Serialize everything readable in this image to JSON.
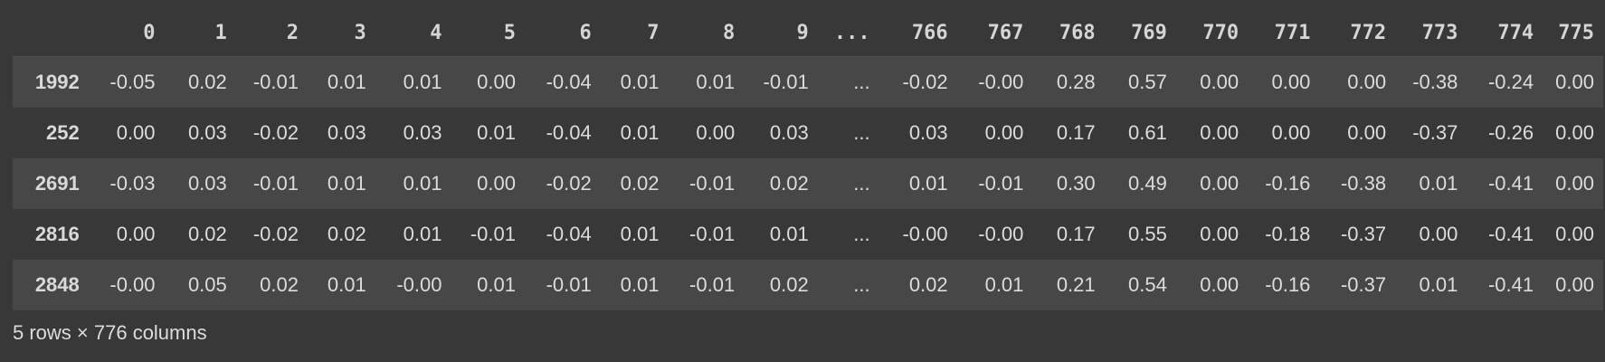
{
  "dataframe": {
    "columns": [
      "0",
      "1",
      "2",
      "3",
      "4",
      "5",
      "6",
      "7",
      "8",
      "9",
      "...",
      "766",
      "767",
      "768",
      "769",
      "770",
      "771",
      "772",
      "773",
      "774",
      "775"
    ],
    "rows": [
      {
        "index": "1992",
        "values": [
          "-0.05",
          "0.02",
          "-0.01",
          "0.01",
          "0.01",
          "0.00",
          "-0.04",
          "0.01",
          "0.01",
          "-0.01",
          "...",
          "-0.02",
          "-0.00",
          "0.28",
          "0.57",
          "0.00",
          "0.00",
          "0.00",
          "-0.38",
          "-0.24",
          "0.00"
        ]
      },
      {
        "index": "252",
        "values": [
          "0.00",
          "0.03",
          "-0.02",
          "0.03",
          "0.03",
          "0.01",
          "-0.04",
          "0.01",
          "0.00",
          "0.03",
          "...",
          "0.03",
          "0.00",
          "0.17",
          "0.61",
          "0.00",
          "0.00",
          "0.00",
          "-0.37",
          "-0.26",
          "0.00"
        ]
      },
      {
        "index": "2691",
        "values": [
          "-0.03",
          "0.03",
          "-0.01",
          "0.01",
          "0.01",
          "0.00",
          "-0.02",
          "0.02",
          "-0.01",
          "0.02",
          "...",
          "0.01",
          "-0.01",
          "0.30",
          "0.49",
          "0.00",
          "-0.16",
          "-0.38",
          "0.01",
          "-0.41",
          "0.00"
        ]
      },
      {
        "index": "2816",
        "values": [
          "0.00",
          "0.02",
          "-0.02",
          "0.02",
          "0.01",
          "-0.01",
          "-0.04",
          "0.01",
          "-0.01",
          "0.01",
          "...",
          "-0.00",
          "-0.00",
          "0.17",
          "0.55",
          "0.00",
          "-0.18",
          "-0.37",
          "0.00",
          "-0.41",
          "0.00"
        ]
      },
      {
        "index": "2848",
        "values": [
          "-0.00",
          "0.05",
          "0.02",
          "0.01",
          "-0.00",
          "0.01",
          "-0.01",
          "0.01",
          "-0.01",
          "0.02",
          "...",
          "0.02",
          "0.01",
          "0.21",
          "0.54",
          "0.00",
          "-0.16",
          "-0.37",
          "0.01",
          "-0.41",
          "0.00"
        ]
      }
    ],
    "summary": "5 rows × 776 columns"
  },
  "colors": {
    "background": "#383838",
    "row_stripe": "#474747",
    "text": "#dcdcdc",
    "header_text": "#d5d5d5"
  }
}
